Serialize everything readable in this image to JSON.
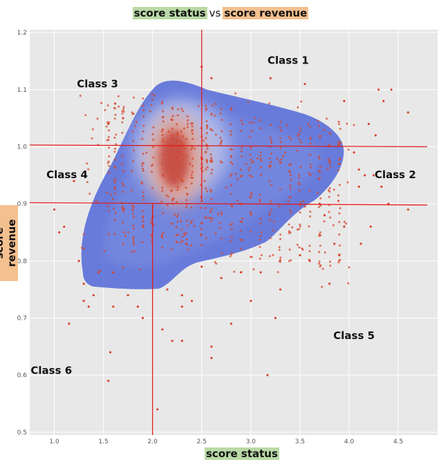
{
  "chart_data": {
    "type": "scatter",
    "title_left": "score status",
    "title_mid": "vs",
    "title_right": "score revenue",
    "xlabel": "score status",
    "ylabel": "score revenue",
    "xlim": [
      0.75,
      4.9
    ],
    "ylim": [
      0.495,
      1.205
    ],
    "xticks": [
      1.0,
      1.5,
      2.0,
      2.5,
      3.0,
      3.5,
      4.0,
      4.5
    ],
    "xtick_labels": [
      "1.0",
      "1.5",
      "2.0",
      "2.5",
      "3.0",
      "3.5",
      "4.0",
      "4.5"
    ],
    "yticks": [
      0.5,
      0.6,
      0.7,
      0.8,
      0.9,
      1.0,
      1.1,
      1.2
    ],
    "ytick_labels": [
      "0.5",
      "0.6",
      "0.7",
      "0.8",
      "0.9",
      "1.0",
      "1.1",
      "1.2"
    ],
    "grid": true,
    "density_overlay": "kde",
    "density_colors": {
      "low": "#4f67d6",
      "mid": "#dce1f5",
      "high": "#c0352a"
    },
    "point_color": "#d6462b",
    "divider_color": "#e31a1c",
    "dividers": {
      "vertical": [
        {
          "x": 2.5,
          "y_from": 0.905,
          "y_to": 1.205
        },
        {
          "x": 2.0,
          "y_from": 0.495,
          "y_to": 0.9
        }
      ],
      "horizontal": [
        {
          "y_start": 1.003,
          "y_end": 1.0,
          "x_from": 0.75,
          "x_to": 4.9
        },
        {
          "y_start": 0.902,
          "y_end": 0.898,
          "x_from": 0.75,
          "x_to": 4.9
        }
      ]
    },
    "annotations": [
      {
        "text": "Class 1",
        "x": 3.38,
        "y": 1.145
      },
      {
        "text": "Class 2",
        "x": 4.47,
        "y": 0.945
      },
      {
        "text": "Class 3",
        "x": 1.44,
        "y": 1.104
      },
      {
        "text": "Class 4",
        "x": 1.13,
        "y": 0.945
      },
      {
        "text": "Class 5",
        "x": 4.05,
        "y": 0.663
      },
      {
        "text": "Class 6",
        "x": 0.97,
        "y": 0.602
      }
    ],
    "outliers": [
      [
        4.3,
        1.1
      ],
      [
        4.35,
        1.08
      ],
      [
        4.43,
        1.1
      ],
      [
        4.6,
        1.06
      ],
      [
        4.2,
        1.04
      ],
      [
        4.25,
        0.95
      ],
      [
        4.27,
        1.02
      ],
      [
        4.33,
        0.93
      ],
      [
        4.4,
        0.9
      ],
      [
        4.6,
        0.89
      ],
      [
        4.16,
        0.95
      ],
      [
        4.1,
        0.96
      ],
      [
        4.22,
        0.86
      ],
      [
        4.12,
        0.83
      ],
      [
        3.55,
        1.11
      ],
      [
        3.95,
        1.08
      ],
      [
        3.2,
        1.12
      ],
      [
        2.6,
        1.12
      ],
      [
        2.5,
        1.14
      ],
      [
        1.55,
        1.04
      ],
      [
        1.7,
        1.05
      ],
      [
        1.2,
        0.94
      ],
      [
        1.05,
        0.85
      ],
      [
        1.1,
        0.86
      ],
      [
        1.15,
        0.69
      ],
      [
        1.55,
        0.59
      ],
      [
        1.57,
        0.64
      ],
      [
        2.05,
        0.54
      ],
      [
        2.6,
        0.63
      ],
      [
        2.6,
        0.65
      ],
      [
        3.17,
        0.6
      ],
      [
        2.8,
        0.69
      ],
      [
        3.25,
        0.7
      ],
      [
        3.3,
        0.75
      ],
      [
        3.8,
        0.76
      ],
      [
        3.0,
        0.73
      ],
      [
        2.2,
        0.66
      ],
      [
        2.3,
        0.66
      ],
      [
        2.1,
        0.68
      ],
      [
        1.9,
        0.7
      ],
      [
        1.85,
        0.72
      ],
      [
        1.6,
        0.72
      ],
      [
        1.35,
        0.72
      ],
      [
        1.3,
        0.73
      ],
      [
        1.4,
        0.74
      ],
      [
        2.4,
        0.73
      ],
      [
        2.3,
        0.72
      ],
      [
        3.6,
        0.8
      ],
      [
        3.9,
        0.81
      ],
      [
        3.85,
        0.83
      ],
      [
        3.5,
        0.81
      ],
      [
        3.95,
        0.86
      ],
      [
        3.7,
        0.9
      ],
      [
        3.75,
        0.88
      ],
      [
        2.9,
        0.78
      ],
      [
        3.1,
        0.78
      ],
      [
        2.7,
        0.77
      ],
      [
        2.5,
        0.79
      ],
      [
        1.0,
        0.89
      ],
      [
        1.25,
        0.8
      ],
      [
        1.3,
        0.76
      ],
      [
        1.45,
        0.78
      ],
      [
        1.6,
        0.78
      ],
      [
        2.15,
        0.75
      ],
      [
        2.3,
        0.74
      ],
      [
        1.75,
        0.74
      ],
      [
        4.05,
        0.99
      ],
      [
        4.1,
        0.93
      ],
      [
        3.9,
        0.97
      ]
    ]
  }
}
